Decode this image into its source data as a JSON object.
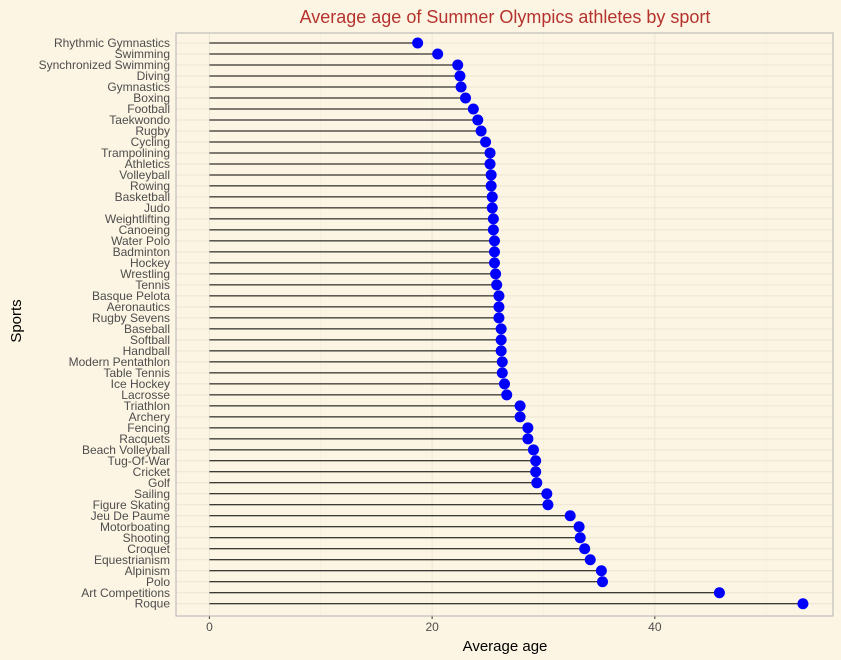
{
  "chart_data": {
    "type": "lollipop",
    "title": "Average age of Summer Olympics athletes by sport",
    "xlabel": "Average age",
    "ylabel": "Sports",
    "xlim": [
      -3,
      56
    ],
    "xticks": [
      0,
      20,
      40
    ],
    "grid": true,
    "legend": "none",
    "colors": {
      "point": "#0000ff",
      "stem": "#000000",
      "title": "#b5332e",
      "background": "#fdf5e3"
    },
    "categories": [
      "Rhythmic Gymnastics",
      "Swimming",
      "Synchronized Swimming",
      "Diving",
      "Gymnastics",
      "Boxing",
      "Football",
      "Taekwondo",
      "Rugby",
      "Cycling",
      "Trampolining",
      "Athletics",
      "Volleyball",
      "Rowing",
      "Basketball",
      "Judo",
      "Weightlifting",
      "Canoeing",
      "Water Polo",
      "Badminton",
      "Hockey",
      "Wrestling",
      "Tennis",
      "Basque Pelota",
      "Aeronautics",
      "Rugby Sevens",
      "Baseball",
      "Softball",
      "Handball",
      "Modern Pentathlon",
      "Table Tennis",
      "Ice Hockey",
      "Lacrosse",
      "Triathlon",
      "Archery",
      "Fencing",
      "Racquets",
      "Beach Volleyball",
      "Tug-Of-War",
      "Cricket",
      "Golf",
      "Sailing",
      "Figure Skating",
      "Jeu De Paume",
      "Motorboating",
      "Shooting",
      "Croquet",
      "Equestrianism",
      "Alpinism",
      "Polo",
      "Art Competitions",
      "Roque"
    ],
    "values": [
      18.7,
      20.5,
      22.3,
      22.5,
      22.6,
      23.0,
      23.7,
      24.1,
      24.4,
      24.8,
      25.2,
      25.2,
      25.3,
      25.3,
      25.4,
      25.4,
      25.5,
      25.5,
      25.6,
      25.6,
      25.6,
      25.7,
      25.8,
      26.0,
      26.0,
      26.0,
      26.2,
      26.2,
      26.2,
      26.3,
      26.3,
      26.5,
      26.7,
      27.9,
      27.9,
      28.6,
      28.6,
      29.1,
      29.3,
      29.3,
      29.4,
      30.3,
      30.4,
      32.4,
      33.2,
      33.3,
      33.7,
      34.2,
      35.2,
      35.3,
      45.8,
      53.3
    ]
  }
}
